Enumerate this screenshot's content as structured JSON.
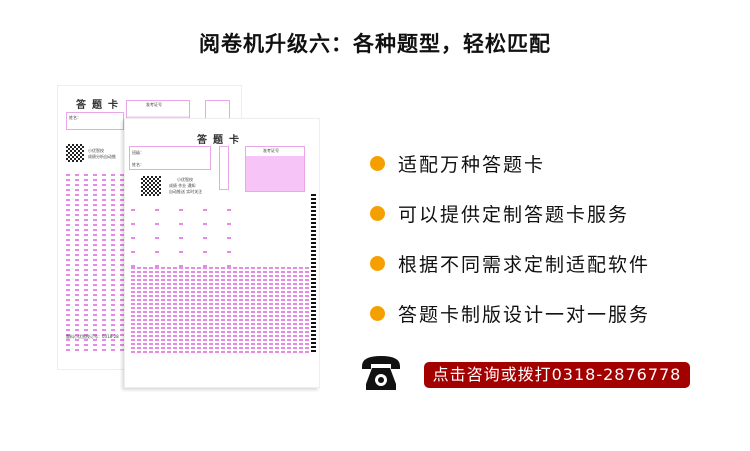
{
  "title": "阅卷机升级六：各种题型，轻松匹配",
  "sheets": {
    "back": {
      "heading": "答题卡",
      "name_label": "姓名：",
      "exam_no_label": "准考证号",
      "brand": "小优智校",
      "brand_sub": "成绩分析自动推",
      "footer": "题料小优智校订号：0318-28"
    },
    "front": {
      "heading": "答题卡",
      "class_label": "班级：",
      "name_label": "姓名：",
      "exam_no_label": "准考证号",
      "brand": "小优智校",
      "brand_sub1": "成绩 作业 通知",
      "brand_sub2": "自动推送 实时关注"
    }
  },
  "features": [
    {
      "text": "适配万种答题卡"
    },
    {
      "text": "可以提供定制答题卡服务"
    },
    {
      "text": "根据不同需求定制适配软件"
    },
    {
      "text": "答题卡制版设计一对一服务"
    }
  ],
  "colors": {
    "bullet": "#f5a000",
    "cta": "#a30000",
    "sheet_accent": "#e58be5"
  },
  "contact": {
    "icon": "telephone-icon",
    "cta_label": "点击咨询或拨打0318-2876778"
  }
}
